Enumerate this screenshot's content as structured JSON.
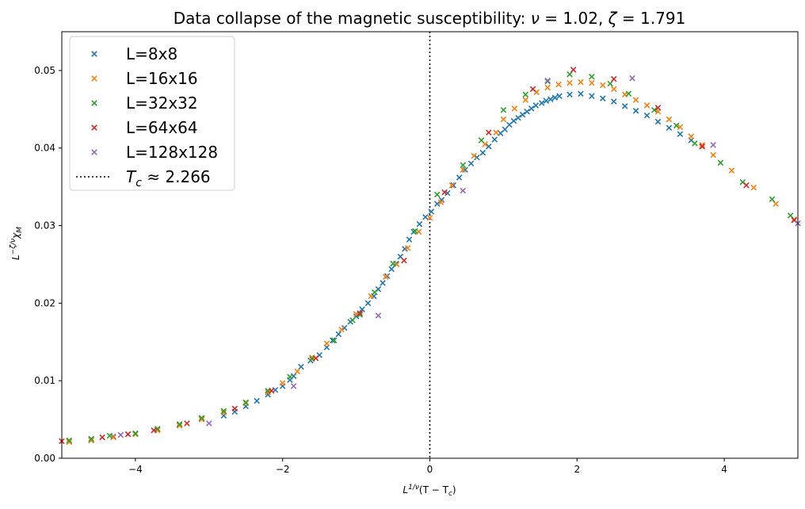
{
  "chart_data": {
    "type": "scatter",
    "title": "Data collapse of the magnetic susceptibility: ν = 1.02, ζ = 1.791",
    "title_parts": {
      "prefix": "Data collapse of the magnetic susceptibility: ",
      "nu_symbol": "ν",
      "nu_value": " = 1.02, ",
      "zeta_symbol": "ζ",
      "zeta_value": " = 1.791"
    },
    "xlabel": "L^{1/ν}(T − T_c)",
    "ylabel": "L^{−ζ/ν}χ_M",
    "xlabel_parts": {
      "base": "L",
      "sup": "1/ν",
      "rest": "(T − T",
      "sub": "c",
      "close": ")"
    },
    "ylabel_parts": {
      "base": "L",
      "sup": "−ζ/ν",
      "chi": "χ",
      "sub": "M"
    },
    "xlim": [
      -5,
      5
    ],
    "ylim": [
      0,
      0.055
    ],
    "xticks": [
      {
        "value": -4,
        "label": "−4"
      },
      {
        "value": -2,
        "label": "−2"
      },
      {
        "value": 0,
        "label": "0"
      },
      {
        "value": 2,
        "label": "2"
      },
      {
        "value": 4,
        "label": "4"
      }
    ],
    "yticks": [
      {
        "value": 0.0,
        "label": "0.00"
      },
      {
        "value": 0.01,
        "label": "0.01"
      },
      {
        "value": 0.02,
        "label": "0.02"
      },
      {
        "value": 0.03,
        "label": "0.03"
      },
      {
        "value": 0.04,
        "label": "0.04"
      },
      {
        "value": 0.05,
        "label": "0.05"
      }
    ],
    "grid": false,
    "legend_position": "upper-left",
    "reference_line": {
      "x": 0,
      "style": "dotted",
      "color": "#000000",
      "label_parts": {
        "var": "T",
        "sub": "c",
        "rest": " ≈ 2.266"
      }
    },
    "marker": "x",
    "series": [
      {
        "name": "L=8x8",
        "color": "#1f77b4",
        "points": [
          [
            -4.9,
            0.0022
          ],
          [
            -4.6,
            0.0024
          ],
          [
            -4.3,
            0.0028
          ],
          [
            -4.0,
            0.0032
          ],
          [
            -3.7,
            0.0037
          ],
          [
            -3.4,
            0.0043
          ],
          [
            -3.1,
            0.0051
          ],
          [
            -2.8,
            0.0055
          ],
          [
            -2.65,
            0.006
          ],
          [
            -2.5,
            0.0067
          ],
          [
            -2.35,
            0.0074
          ],
          [
            -2.2,
            0.0082
          ],
          [
            -2.1,
            0.0088
          ],
          [
            -2.0,
            0.0093
          ],
          [
            -1.9,
            0.0101
          ],
          [
            -1.85,
            0.0106
          ],
          [
            -1.75,
            0.0118
          ],
          [
            -1.62,
            0.0126
          ],
          [
            -1.5,
            0.0133
          ],
          [
            -1.4,
            0.0143
          ],
          [
            -1.32,
            0.0152
          ],
          [
            -1.24,
            0.016
          ],
          [
            -1.16,
            0.0168
          ],
          [
            -1.08,
            0.0176
          ],
          [
            -1.0,
            0.0183
          ],
          [
            -0.92,
            0.0192
          ],
          [
            -0.84,
            0.02
          ],
          [
            -0.76,
            0.0209
          ],
          [
            -0.7,
            0.0218
          ],
          [
            -0.64,
            0.0226
          ],
          [
            -0.58,
            0.0235
          ],
          [
            -0.52,
            0.0244
          ],
          [
            -0.46,
            0.0251
          ],
          [
            -0.4,
            0.026
          ],
          [
            -0.34,
            0.027
          ],
          [
            -0.28,
            0.0282
          ],
          [
            -0.22,
            0.0292
          ],
          [
            -0.14,
            0.0302
          ],
          [
            -0.06,
            0.0311
          ],
          [
            0.02,
            0.0318
          ],
          [
            0.1,
            0.0328
          ],
          [
            0.16,
            0.0333
          ],
          [
            0.24,
            0.0342
          ],
          [
            0.32,
            0.0352
          ],
          [
            0.4,
            0.0362
          ],
          [
            0.48,
            0.0372
          ],
          [
            0.56,
            0.038
          ],
          [
            0.64,
            0.0388
          ],
          [
            0.72,
            0.0394
          ],
          [
            0.8,
            0.0402
          ],
          [
            0.88,
            0.0411
          ],
          [
            0.96,
            0.0419
          ],
          [
            1.02,
            0.0424
          ],
          [
            1.08,
            0.043
          ],
          [
            1.14,
            0.0435
          ],
          [
            1.2,
            0.0439
          ],
          [
            1.26,
            0.0443
          ],
          [
            1.32,
            0.0447
          ],
          [
            1.38,
            0.0451
          ],
          [
            1.44,
            0.0455
          ],
          [
            1.52,
            0.0458
          ],
          [
            1.58,
            0.0461
          ],
          [
            1.64,
            0.0463
          ],
          [
            1.7,
            0.0465
          ],
          [
            1.76,
            0.0467
          ],
          [
            1.9,
            0.0469
          ],
          [
            2.05,
            0.047
          ],
          [
            2.2,
            0.0467
          ],
          [
            2.35,
            0.0464
          ],
          [
            2.5,
            0.046
          ],
          [
            2.65,
            0.0454
          ],
          [
            2.8,
            0.0448
          ],
          [
            2.95,
            0.0442
          ],
          [
            3.1,
            0.0434
          ],
          [
            3.25,
            0.0426
          ],
          [
            3.4,
            0.0418
          ],
          [
            3.55,
            0.041
          ],
          [
            3.7,
            0.0402
          ]
        ]
      },
      {
        "name": "L=16x16",
        "color": "#ff7f0e",
        "points": [
          [
            -4.9,
            0.0021
          ],
          [
            -4.6,
            0.0023
          ],
          [
            -4.3,
            0.0027
          ],
          [
            -4.0,
            0.0031
          ],
          [
            -3.7,
            0.0036
          ],
          [
            -3.4,
            0.0042
          ],
          [
            -3.1,
            0.005
          ],
          [
            -2.8,
            0.0059
          ],
          [
            -2.5,
            0.0071
          ],
          [
            -2.2,
            0.0085
          ],
          [
            -2.0,
            0.0097
          ],
          [
            -1.8,
            0.0112
          ],
          [
            -1.6,
            0.013
          ],
          [
            -1.4,
            0.0148
          ],
          [
            -1.2,
            0.0166
          ],
          [
            -1.0,
            0.0186
          ],
          [
            -0.8,
            0.0209
          ],
          [
            -0.6,
            0.0234
          ],
          [
            -0.45,
            0.025
          ],
          [
            -0.3,
            0.0271
          ],
          [
            -0.15,
            0.0292
          ],
          [
            0.0,
            0.031
          ],
          [
            0.15,
            0.033
          ],
          [
            0.3,
            0.0352
          ],
          [
            0.45,
            0.0372
          ],
          [
            0.6,
            0.039
          ],
          [
            0.75,
            0.0405
          ],
          [
            0.9,
            0.042
          ],
          [
            1.0,
            0.0437
          ],
          [
            1.15,
            0.0451
          ],
          [
            1.3,
            0.0462
          ],
          [
            1.45,
            0.0472
          ],
          [
            1.6,
            0.0478
          ],
          [
            1.75,
            0.0482
          ],
          [
            1.9,
            0.0484
          ],
          [
            2.05,
            0.0485
          ],
          [
            2.2,
            0.0484
          ],
          [
            2.35,
            0.0481
          ],
          [
            2.5,
            0.0476
          ],
          [
            2.65,
            0.0469
          ],
          [
            2.8,
            0.0462
          ],
          [
            2.95,
            0.0455
          ],
          [
            3.1,
            0.0447
          ],
          [
            3.25,
            0.0437
          ],
          [
            3.4,
            0.0427
          ],
          [
            3.55,
            0.0415
          ],
          [
            3.7,
            0.0404
          ],
          [
            3.85,
            0.0391
          ],
          [
            4.1,
            0.0371
          ],
          [
            4.4,
            0.0349
          ],
          [
            4.7,
            0.0328
          ],
          [
            4.95,
            0.0308
          ]
        ]
      },
      {
        "name": "L=32x32",
        "color": "#2ca02c",
        "points": [
          [
            -4.9,
            0.0023
          ],
          [
            -4.6,
            0.0025
          ],
          [
            -4.35,
            0.0029
          ],
          [
            -4.0,
            0.0032
          ],
          [
            -3.7,
            0.0038
          ],
          [
            -3.4,
            0.0044
          ],
          [
            -3.1,
            0.0052
          ],
          [
            -2.8,
            0.0061
          ],
          [
            -2.5,
            0.0072
          ],
          [
            -2.2,
            0.0087
          ],
          [
            -1.9,
            0.0105
          ],
          [
            -1.6,
            0.0128
          ],
          [
            -1.3,
            0.0152
          ],
          [
            -1.05,
            0.0178
          ],
          [
            -0.95,
            0.0185
          ],
          [
            -0.75,
            0.0214
          ],
          [
            -0.5,
            0.0251
          ],
          [
            -0.2,
            0.0293
          ],
          [
            0.1,
            0.034
          ],
          [
            0.45,
            0.0378
          ],
          [
            0.7,
            0.041
          ],
          [
            1.0,
            0.0449
          ],
          [
            1.3,
            0.0469
          ],
          [
            1.6,
            0.0486
          ],
          [
            1.9,
            0.0495
          ],
          [
            2.2,
            0.0492
          ],
          [
            2.45,
            0.0483
          ],
          [
            2.7,
            0.047
          ],
          [
            3.05,
            0.0449
          ],
          [
            3.35,
            0.0429
          ],
          [
            3.6,
            0.0406
          ],
          [
            3.95,
            0.0381
          ],
          [
            4.25,
            0.0356
          ],
          [
            4.65,
            0.0334
          ],
          [
            4.9,
            0.0313
          ]
        ]
      },
      {
        "name": "L=64x64",
        "color": "#d62728",
        "points": [
          [
            -5.0,
            0.0022
          ],
          [
            -4.45,
            0.0027
          ],
          [
            -4.1,
            0.0031
          ],
          [
            -3.75,
            0.0036
          ],
          [
            -3.3,
            0.0045
          ],
          [
            -2.65,
            0.0064
          ],
          [
            -2.15,
            0.0087
          ],
          [
            -1.55,
            0.0129
          ],
          [
            -0.95,
            0.0187
          ],
          [
            -0.35,
            0.0255
          ],
          [
            0.2,
            0.0343
          ],
          [
            0.8,
            0.042
          ],
          [
            1.4,
            0.0476
          ],
          [
            1.95,
            0.0501
          ],
          [
            2.5,
            0.0489
          ],
          [
            3.1,
            0.0452
          ],
          [
            3.7,
            0.0402
          ],
          [
            4.3,
            0.0352
          ],
          [
            4.95,
            0.0307
          ]
        ]
      },
      {
        "name": "L=128x128",
        "color": "#9467bd",
        "points": [
          [
            -4.2,
            0.003
          ],
          [
            -3.0,
            0.0045
          ],
          [
            -1.85,
            0.0093
          ],
          [
            -0.7,
            0.0184
          ],
          [
            0.45,
            0.0345
          ],
          [
            1.6,
            0.0487
          ],
          [
            2.75,
            0.049
          ],
          [
            3.85,
            0.0404
          ],
          [
            5.0,
            0.0303
          ]
        ]
      }
    ]
  }
}
